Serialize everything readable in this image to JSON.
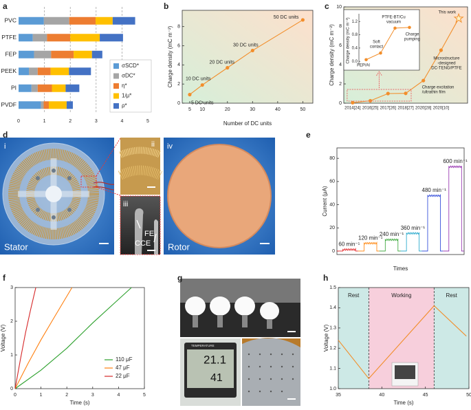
{
  "chart_data": [
    {
      "panel": "a",
      "type": "bar",
      "orientation": "horizontal",
      "stacked": true,
      "categories": [
        "PVC",
        "PTFE",
        "FEP",
        "PEEK",
        "PI",
        "PVDF"
      ],
      "series": [
        {
          "name": "σSCD*",
          "color": "#5b9bd5",
          "values": [
            0.98,
            0.55,
            0.6,
            0.4,
            0.5,
            0.87
          ]
        },
        {
          "name": "σDC*",
          "color": "#a5a5a5",
          "values": [
            0.98,
            0.55,
            0.66,
            0.34,
            0.24,
            0.1
          ]
        },
        {
          "name": "η*",
          "color": "#ed7d31",
          "values": [
            1.02,
            0.9,
            0.87,
            0.5,
            0.55,
            0.2
          ]
        },
        {
          "name": "1/μ*",
          "color": "#ffc000",
          "values": [
            0.66,
            1.14,
            0.71,
            0.71,
            0.53,
            0.69
          ]
        },
        {
          "name": "ρ*",
          "color": "#4472c4",
          "values": [
            0.87,
            0.9,
            0.4,
            0.85,
            0.53,
            0.24
          ]
        }
      ],
      "xlim": [
        0,
        5
      ],
      "xticks": [
        0,
        1,
        2,
        3,
        4,
        5
      ],
      "grid": true,
      "legend": "right"
    },
    {
      "panel": "b",
      "type": "line",
      "xlabel": "Number of DC units",
      "ylabel": "Charge density (mC m⁻²)",
      "x": [
        5,
        10,
        20,
        30,
        50
      ],
      "values": [
        0.9,
        1.9,
        3.7,
        5.5,
        8.7
      ],
      "color": "#f28e2b",
      "markers": true,
      "annotations": [
        "5 DC units",
        "10 DC units",
        "20 DC units",
        "30 DC units",
        "50 DC units"
      ],
      "xlim": [
        2,
        54
      ],
      "xticks": [
        5,
        10,
        20,
        30,
        40,
        50
      ],
      "ylim": [
        0,
        9.7
      ],
      "yticks": [
        0,
        2,
        4,
        6,
        8
      ]
    },
    {
      "panel": "c",
      "type": "line",
      "ylabel": "Charge density (mC m⁻²)",
      "categories": [
        "2014[24]",
        "2016[25]",
        "2017[26]",
        "2018[27]",
        "2020[28]",
        "2020[10]",
        null
      ],
      "values": [
        0.05,
        0.25,
        1.0,
        1.02,
        2.35,
        5.5,
        8.8
      ],
      "color": "#f28e2b",
      "markers": true,
      "annotations": [
        null,
        null,
        null,
        null,
        [
          "Charge excitation",
          "/ultrathin film"
        ],
        [
          "Microstructure",
          "-designed",
          "DC-TENG/PTFE"
        ],
        [
          "This work"
        ]
      ],
      "ylim": [
        0,
        10
      ],
      "yticks": [
        0,
        2,
        4,
        6,
        8,
        10
      ],
      "inset": {
        "ylabel": "Charge density (mC m⁻²)",
        "labels": [
          [
            "FEP/Al"
          ],
          [
            "Soft",
            "contact"
          ],
          [
            "PTFE-BT/Cu",
            "vacuum"
          ],
          [
            "Charge",
            "pumping"
          ]
        ],
        "ylim": [
          -0.1,
          1.35
        ],
        "yticks": [
          {
            "value": 0,
            "label": "0.0"
          },
          0.4,
          0.8,
          1.2
        ]
      }
    },
    {
      "panel": "d",
      "type": "image",
      "texts": [
        "i",
        "ii",
        "iii",
        "iv",
        "Stator",
        "Rotor",
        "FE",
        "CCE"
      ]
    },
    {
      "panel": "e",
      "type": "pulse",
      "xlabel": "Times",
      "ylabel": "Current (μA)",
      "series": [
        {
          "name": "60 min⁻¹",
          "color": "#e31a1c",
          "value": 1.5
        },
        {
          "name": "120 min⁻¹",
          "color": "#ff7f00",
          "value": 7
        },
        {
          "name": "240 min⁻¹",
          "color": "#2ca02c",
          "value": 10
        },
        {
          "name": "360 min⁻¹",
          "color": "#17a2c8",
          "value": 15.5
        },
        {
          "name": "480 min⁻¹",
          "color": "#1f3bd6",
          "value": 48
        },
        {
          "name": "600 min⁻¹",
          "color": "#8e24aa",
          "value": 73
        }
      ],
      "ylim": [
        -3,
        89
      ],
      "yticks": [
        0,
        20,
        40,
        60,
        80
      ]
    },
    {
      "panel": "f",
      "type": "line",
      "xlabel": "Time (s)",
      "ylabel": "Voltage (V)",
      "series": [
        {
          "name": "110 μF",
          "color": "#2ca02c",
          "x": [
            0,
            1,
            2,
            3,
            4,
            4.5
          ],
          "values": [
            0,
            0.55,
            1.2,
            1.95,
            2.65,
            3
          ]
        },
        {
          "name": "47 μF",
          "color": "#ff7f0e",
          "x": [
            0,
            0.5,
            1,
            1.5,
            2.2
          ],
          "values": [
            0,
            0.75,
            1.45,
            2.1,
            3
          ]
        },
        {
          "name": "22 μF",
          "color": "#d62728",
          "x": [
            0,
            0.2,
            0.4,
            0.6,
            0.8
          ],
          "values": [
            0,
            0.85,
            1.65,
            2.35,
            3
          ]
        }
      ],
      "xlim": [
        0,
        5
      ],
      "ylim": [
        0,
        3
      ],
      "xticks": [
        0,
        1,
        2,
        3,
        4,
        5
      ],
      "yticks": [
        0,
        1,
        2,
        3
      ],
      "legend": "lower right"
    },
    {
      "panel": "g",
      "type": "image",
      "texts": [
        "TEMPERATURE",
        "21.1",
        "41"
      ]
    },
    {
      "panel": "h",
      "type": "line",
      "xlabel": "Time (s)",
      "ylabel": "Voltage (V)",
      "x": [
        35,
        38.5,
        46,
        49.7
      ],
      "values": [
        1.24,
        1.05,
        1.41,
        1.26
      ],
      "color": "#f28e2b",
      "regions": [
        {
          "label": "Rest",
          "x": [
            35,
            38.5
          ],
          "color": "#cde9e6"
        },
        {
          "label": "Working",
          "x": [
            38.5,
            46
          ],
          "color": "#f7cfdc"
        },
        {
          "label": "Rest",
          "x": [
            46,
            50
          ],
          "color": "#cde9e6"
        }
      ],
      "xlim": [
        35,
        50
      ],
      "ylim": [
        1.0,
        1.5
      ],
      "xticks": [
        35,
        40,
        45,
        50
      ],
      "yticks": [
        {
          "value": 1,
          "label": "1.0"
        },
        1.1,
        1.2,
        1.3,
        1.4,
        1.5
      ]
    }
  ]
}
